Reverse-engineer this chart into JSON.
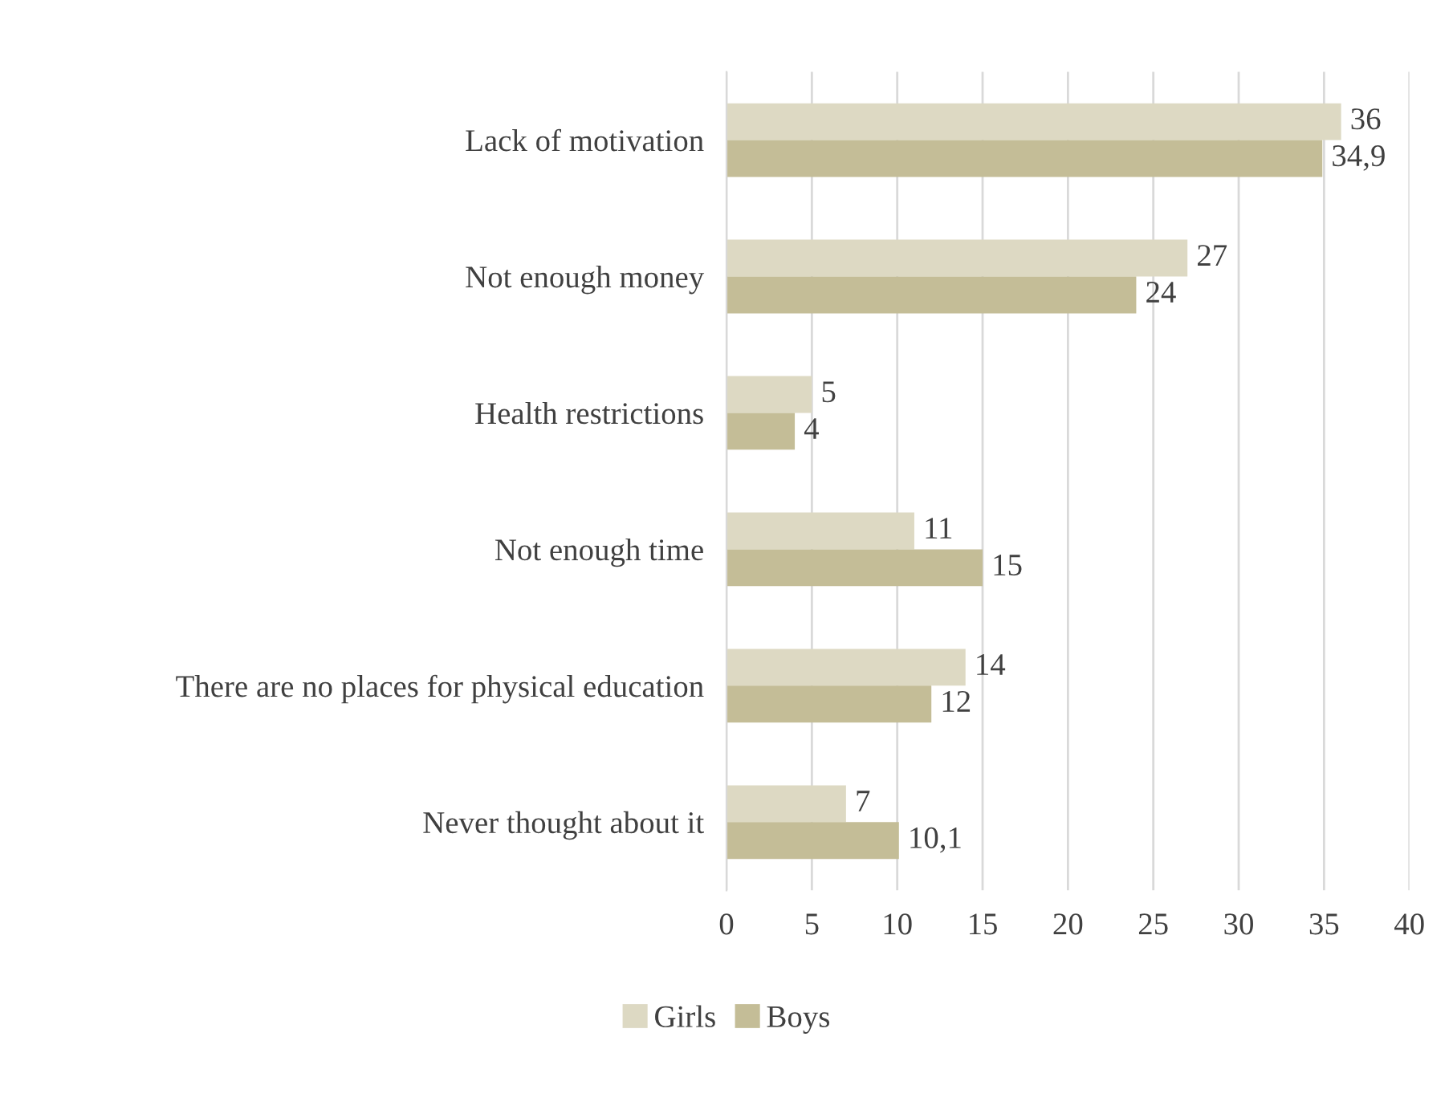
{
  "chart_data": {
    "type": "bar",
    "orientation": "horizontal",
    "categories": [
      "Lack of motivation",
      "Not enough money",
      "Health restrictions",
      "Not enough time",
      "There are no places for physical education",
      "Never thought about it"
    ],
    "series": [
      {
        "name": "Girls",
        "color": "#ddd9c3",
        "values": [
          36,
          27,
          5,
          11,
          14,
          7
        ],
        "value_labels": [
          "36",
          "27",
          "5",
          "11",
          "14",
          "7"
        ]
      },
      {
        "name": "Boys",
        "color": "#c4bd97",
        "values": [
          34.9,
          24,
          4,
          15,
          12,
          10.1
        ],
        "value_labels": [
          "34,9",
          "24",
          "4",
          "15",
          "12",
          "10,1"
        ]
      }
    ],
    "xlim": [
      0,
      40
    ],
    "xticks": [
      0,
      5,
      10,
      15,
      20,
      25,
      30,
      35,
      40
    ],
    "grid": "x",
    "legend": "bottom"
  }
}
